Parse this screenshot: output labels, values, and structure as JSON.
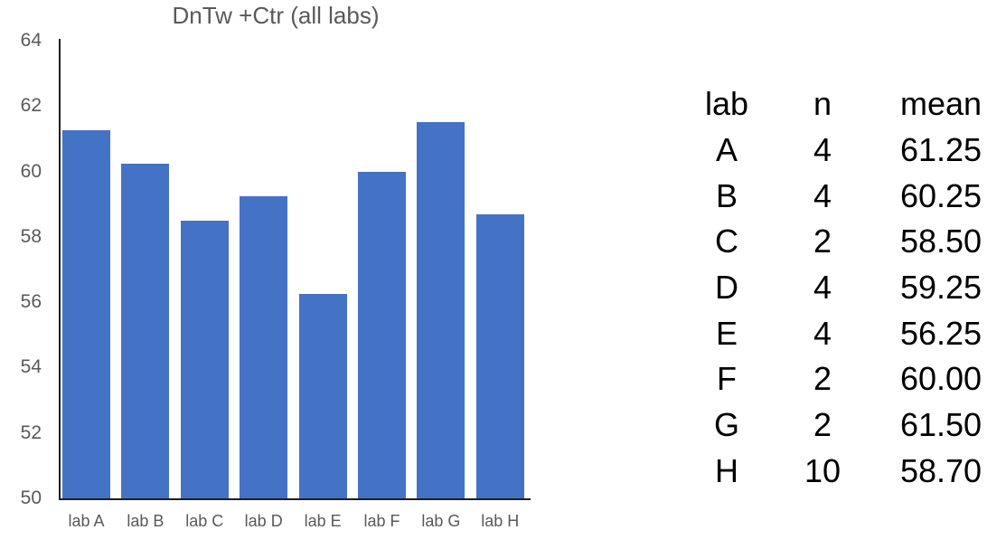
{
  "chart_data": {
    "type": "bar",
    "title": "DnTw +Ctr (all labs)",
    "categories": [
      "lab A",
      "lab B",
      "lab C",
      "lab D",
      "lab E",
      "lab F",
      "lab G",
      "lab H"
    ],
    "values": [
      61.25,
      60.25,
      58.5,
      59.25,
      56.25,
      60.0,
      61.5,
      58.7
    ],
    "xlabel": "",
    "ylabel": "",
    "ylim": [
      50,
      64
    ],
    "yticks": [
      64,
      62,
      60,
      58,
      56,
      54,
      52,
      50
    ],
    "grid": false,
    "legend_position": "none",
    "bar_color": "#4472C4",
    "axis_color": "#1f1f1f",
    "label_color": "#595959"
  },
  "table": {
    "columns": [
      "lab",
      "n",
      "mean"
    ],
    "rows": [
      [
        "A",
        "4",
        "61.25"
      ],
      [
        "B",
        "4",
        "60.25"
      ],
      [
        "C",
        "2",
        "58.50"
      ],
      [
        "D",
        "4",
        "59.25"
      ],
      [
        "E",
        "4",
        "56.25"
      ],
      [
        "F",
        "2",
        "60.00"
      ],
      [
        "G",
        "2",
        "61.50"
      ],
      [
        "H",
        "10",
        "58.70"
      ]
    ]
  }
}
